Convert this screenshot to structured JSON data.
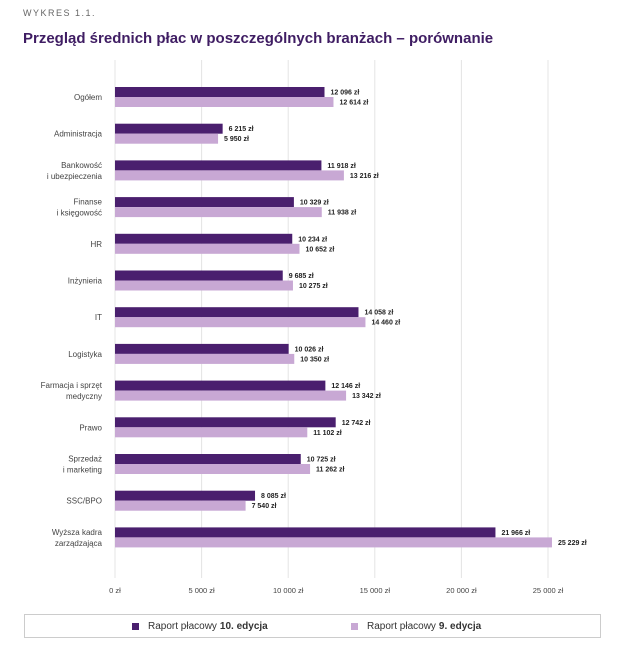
{
  "header": {
    "kicker": "WYKRES 1.1.",
    "title": "Przegląd średnich płac w poszczególnych branżach – porównanie"
  },
  "chart_data": {
    "type": "bar",
    "orientation": "horizontal",
    "categories": [
      [
        "Ogółem"
      ],
      [
        "Administracja"
      ],
      [
        "Bankowość",
        "i ubezpieczenia"
      ],
      [
        "Finanse",
        "i księgowość"
      ],
      [
        "HR"
      ],
      [
        "Inżynieria"
      ],
      [
        "IT"
      ],
      [
        "Logistyka"
      ],
      [
        "Farmacja i sprzęt",
        "medyczny"
      ],
      [
        "Prawo"
      ],
      [
        "Sprzedaż",
        "i marketing"
      ],
      [
        "SSC/BPO"
      ],
      [
        "Wyższa kadra",
        "zarządzająca"
      ]
    ],
    "series": [
      {
        "name": "Raport płacowy 10. edycja",
        "color": "#4a1f6e",
        "values": [
          12096,
          6215,
          11918,
          10329,
          10234,
          9685,
          14058,
          10026,
          12146,
          12742,
          10725,
          8085,
          21966
        ],
        "labels": [
          "12 096 zł",
          "6 215 zł",
          "11 918 zł",
          "10 329 zł",
          "10 234 zł",
          "9 685 zł",
          "14 058 zł",
          "10 026 zł",
          "12 146 zł",
          "12 742 zł",
          "10 725 zł",
          "8 085 zł",
          "21 966 zł"
        ]
      },
      {
        "name": "Raport płacowy 9. edycja",
        "color": "#c8a8d4",
        "values": [
          12614,
          5950,
          13216,
          11938,
          10652,
          10275,
          14460,
          10350,
          13342,
          11102,
          11262,
          7540,
          25229
        ],
        "labels": [
          "12 614 zł",
          "5 950 zł",
          "13 216 zł",
          "11 938 zł",
          "10 652 zł",
          "10 275 zł",
          "14 460 zł",
          "10 350 zł",
          "13 342 zł",
          "11 102 zł",
          "11 262 zł",
          "7 540 zł",
          "25 229 zł"
        ]
      }
    ],
    "xlim": [
      0,
      25000
    ],
    "xticks": [
      0,
      5000,
      10000,
      15000,
      20000,
      25000
    ],
    "xtick_labels": [
      "0 zł",
      "5 000 zł",
      "10 000 zł",
      "15 000 zł",
      "20 000 zł",
      "25 000 zł"
    ],
    "grid": true,
    "legend_position": "bottom"
  },
  "legend": {
    "items": [
      {
        "prefix": "Raport płacowy",
        "bold": "10. edycja",
        "color": "#4a1f6e"
      },
      {
        "prefix": "Raport płacowy",
        "bold": "9. edycja",
        "color": "#c8a8d4"
      }
    ]
  }
}
